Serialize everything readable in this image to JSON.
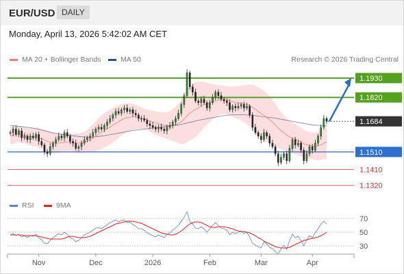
{
  "header": {
    "pair": "EUR/USD",
    "period": "DAILY"
  },
  "datetime": "Monday, April 13, 2026 5:42:02 AM CET",
  "legend": {
    "ma20": {
      "label": "MA 20 + Bollinger Bands",
      "color": "#f08080"
    },
    "ma50": {
      "label": "MA 50",
      "color": "#2c4f8a"
    },
    "credit": "Research © 2026 Trading Central",
    "rsi": {
      "label": "RSI",
      "color": "#5b7fd6"
    },
    "ma9": {
      "label": "9MA",
      "color": "#e02020"
    }
  },
  "chart_data": {
    "type": "candlestick",
    "x_ticks": [
      "Nov",
      "Dec",
      "2026",
      "Feb",
      "Mar",
      "Apr"
    ],
    "price_range": [
      1.126,
      1.2
    ],
    "levels": [
      {
        "label": "1.1930",
        "value": 1.193,
        "kind": "resistance",
        "color": "#5aa02c"
      },
      {
        "label": "1.1820",
        "value": 1.182,
        "kind": "resistance",
        "color": "#5aa02c"
      },
      {
        "label": "1.1684",
        "value": 1.1684,
        "kind": "last-price",
        "color": "#333333"
      },
      {
        "label": "1.1510",
        "value": 1.151,
        "kind": "support",
        "color": "#4a7fd4"
      },
      {
        "label": "1.1410",
        "value": 1.141,
        "kind": "support",
        "color": "#e06060"
      },
      {
        "label": "1.1320",
        "value": 1.132,
        "kind": "support",
        "color": "#e06060"
      }
    ],
    "close": [
      1.162,
      1.164,
      1.161,
      1.163,
      1.159,
      1.16,
      1.158,
      1.16,
      1.159,
      1.161,
      1.157,
      1.155,
      1.151,
      1.15,
      1.154,
      1.156,
      1.158,
      1.16,
      1.159,
      1.162,
      1.16,
      1.157,
      1.156,
      1.153,
      1.154,
      1.156,
      1.158,
      1.159,
      1.16,
      1.162,
      1.164,
      1.165,
      1.164,
      1.166,
      1.168,
      1.17,
      1.172,
      1.174,
      1.173,
      1.175,
      1.176,
      1.174,
      1.175,
      1.173,
      1.172,
      1.17,
      1.17,
      1.169,
      1.167,
      1.166,
      1.165,
      1.164,
      1.165,
      1.164,
      1.163,
      1.165,
      1.166,
      1.168,
      1.17,
      1.173,
      1.178,
      1.183,
      1.196,
      1.188,
      1.185,
      1.18,
      1.179,
      1.181,
      1.179,
      1.176,
      1.179,
      1.182,
      1.185,
      1.183,
      1.181,
      1.18,
      1.179,
      1.175,
      1.177,
      1.176,
      1.177,
      1.178,
      1.176,
      1.177,
      1.172,
      1.165,
      1.162,
      1.16,
      1.158,
      1.162,
      1.16,
      1.156,
      1.154,
      1.15,
      1.145,
      1.148,
      1.15,
      1.146,
      1.153,
      1.158,
      1.155,
      1.156,
      1.152,
      1.146,
      1.15,
      1.154,
      1.152,
      1.156,
      1.16,
      1.165,
      1.17,
      1.1684
    ],
    "ma20": [
      1.16,
      1.1605,
      1.161,
      1.161,
      1.1605,
      1.1605,
      1.16,
      1.1598,
      1.1595,
      1.1595,
      1.159,
      1.1585,
      1.1578,
      1.157,
      1.1565,
      1.1562,
      1.156,
      1.156,
      1.1562,
      1.1565,
      1.1566,
      1.1565,
      1.1562,
      1.156,
      1.156,
      1.1562,
      1.1566,
      1.1572,
      1.158,
      1.159,
      1.16,
      1.1612,
      1.1622,
      1.1632,
      1.1642,
      1.1652,
      1.1662,
      1.1672,
      1.1682,
      1.1692,
      1.17,
      1.1705,
      1.1708,
      1.171,
      1.1708,
      1.1705,
      1.1702,
      1.1698,
      1.1692,
      1.1686,
      1.168,
      1.1675,
      1.167,
      1.1666,
      1.1662,
      1.166,
      1.166,
      1.1662,
      1.1666,
      1.1672,
      1.1682,
      1.1696,
      1.1716,
      1.173,
      1.1742,
      1.1752,
      1.176,
      1.177,
      1.1778,
      1.1784,
      1.179,
      1.1796,
      1.18,
      1.1804,
      1.1806,
      1.1806,
      1.1804,
      1.18,
      1.1796,
      1.1792,
      1.179,
      1.1788,
      1.1784,
      1.178,
      1.1774,
      1.1764,
      1.1752,
      1.174,
      1.1728,
      1.1718,
      1.1706,
      1.1694,
      1.168,
      1.1664,
      1.1646,
      1.1632,
      1.162,
      1.1606,
      1.1596,
      1.159,
      1.1582,
      1.1575,
      1.1566,
      1.1556,
      1.155,
      1.1548,
      1.1544,
      1.1542,
      1.1544,
      1.155,
      1.1558,
      1.1566
    ],
    "ma50": [
      1.166,
      1.166,
      1.1658,
      1.1656,
      1.1654,
      1.1652,
      1.165,
      1.1648,
      1.1645,
      1.1642,
      1.1638,
      1.1634,
      1.163,
      1.1626,
      1.1622,
      1.1618,
      1.1615,
      1.1612,
      1.161,
      1.1608,
      1.1606,
      1.1604,
      1.1602,
      1.16,
      1.1598,
      1.1596,
      1.1595,
      1.1594,
      1.1594,
      1.1595,
      1.1596,
      1.1598,
      1.16,
      1.1602,
      1.1605,
      1.1608,
      1.1611,
      1.1614,
      1.1617,
      1.162,
      1.1623,
      1.1626,
      1.1629,
      1.1632,
      1.1634,
      1.1636,
      1.1638,
      1.164,
      1.1642,
      1.1644,
      1.1646,
      1.1648,
      1.165,
      1.1652,
      1.1654,
      1.1656,
      1.1658,
      1.166,
      1.1662,
      1.1664,
      1.1667,
      1.167,
      1.1674,
      1.1678,
      1.1682,
      1.1686,
      1.169,
      1.1693,
      1.1696,
      1.1699,
      1.1702,
      1.1705,
      1.1708,
      1.1711,
      1.1714,
      1.1716,
      1.1718,
      1.172,
      1.1721,
      1.1722,
      1.1722,
      1.1722,
      1.1721,
      1.172,
      1.1719,
      1.1718,
      1.1716,
      1.1714,
      1.1712,
      1.171,
      1.1708,
      1.1706,
      1.1704,
      1.1702,
      1.1699,
      1.1696,
      1.1693,
      1.169,
      1.1687,
      1.1684,
      1.1681,
      1.1678,
      1.1675,
      1.1672,
      1.1669,
      1.1666,
      1.1664,
      1.1662,
      1.1661,
      1.166,
      1.166,
      1.166
    ],
    "bb_width": [
      0.005,
      0.005,
      0.0048,
      0.0046,
      0.0046,
      0.0046,
      0.0048,
      0.005,
      0.0052,
      0.0054,
      0.0056,
      0.0058,
      0.006,
      0.0062,
      0.0062,
      0.006,
      0.0058,
      0.0056,
      0.0054,
      0.0052,
      0.005,
      0.005,
      0.0052,
      0.0054,
      0.0056,
      0.0058,
      0.006,
      0.0064,
      0.007,
      0.0078,
      0.0086,
      0.0092,
      0.0096,
      0.0098,
      0.01,
      0.01,
      0.0098,
      0.0096,
      0.0094,
      0.009,
      0.0086,
      0.0082,
      0.0078,
      0.0074,
      0.007,
      0.0066,
      0.0062,
      0.006,
      0.006,
      0.0062,
      0.0064,
      0.0066,
      0.0068,
      0.007,
      0.0072,
      0.0076,
      0.0082,
      0.009,
      0.01,
      0.0112,
      0.0126,
      0.014,
      0.015,
      0.0156,
      0.0158,
      0.0156,
      0.015,
      0.014,
      0.013,
      0.012,
      0.011,
      0.01,
      0.0092,
      0.0086,
      0.0082,
      0.008,
      0.008,
      0.0082,
      0.0086,
      0.009,
      0.0094,
      0.0098,
      0.0104,
      0.0112,
      0.012,
      0.0128,
      0.0134,
      0.0138,
      0.014,
      0.014,
      0.0138,
      0.0134,
      0.0128,
      0.012,
      0.0112,
      0.0106,
      0.01,
      0.0096,
      0.0092,
      0.0088,
      0.0086,
      0.0084,
      0.0082,
      0.008,
      0.0078,
      0.0076,
      0.0076,
      0.0078,
      0.0082,
      0.0086,
      0.009,
      0.0094
    ],
    "projection": {
      "from": 1.1684,
      "to": 1.193
    },
    "rsi": {
      "ticks": [
        "70",
        "50",
        "30"
      ],
      "range": [
        20,
        80
      ],
      "values": [
        46,
        48,
        45,
        47,
        43,
        45,
        42,
        45,
        44,
        47,
        42,
        39,
        34,
        33,
        38,
        42,
        45,
        48,
        46,
        50,
        47,
        42,
        40,
        36,
        38,
        42,
        46,
        48,
        50,
        53,
        56,
        57,
        55,
        58,
        61,
        64,
        66,
        68,
        65,
        67,
        68,
        64,
        65,
        61,
        59,
        55,
        55,
        53,
        49,
        47,
        45,
        43,
        46,
        44,
        42,
        47,
        49,
        53,
        56,
        60,
        66,
        72,
        80,
        66,
        62,
        56,
        55,
        58,
        55,
        50,
        55,
        60,
        64,
        60,
        56,
        55,
        53,
        46,
        50,
        48,
        50,
        52,
        48,
        50,
        43,
        34,
        31,
        29,
        27,
        36,
        33,
        28,
        26,
        22,
        18,
        26,
        31,
        25,
        38,
        47,
        42,
        44,
        38,
        30,
        38,
        45,
        42,
        49,
        55,
        62,
        66,
        62
      ],
      "ma9": [
        46,
        46,
        46,
        46,
        46,
        45,
        45,
        45,
        45,
        45,
        44,
        43,
        42,
        41,
        40,
        40,
        40,
        40,
        40,
        41,
        43,
        44,
        44,
        43,
        42,
        42,
        42,
        43,
        44,
        46,
        48,
        50,
        52,
        54,
        56,
        58,
        60,
        62,
        63,
        64,
        65,
        66,
        66,
        66,
        65,
        64,
        63,
        61,
        59,
        57,
        55,
        53,
        51,
        49,
        48,
        47,
        46,
        46,
        47,
        49,
        52,
        55,
        59,
        62,
        64,
        65,
        65,
        64,
        62,
        60,
        58,
        57,
        57,
        58,
        58,
        58,
        57,
        56,
        55,
        53,
        52,
        51,
        51,
        50,
        49,
        47,
        45,
        42,
        40,
        37,
        35,
        33,
        31,
        29,
        28,
        27,
        27,
        27,
        28,
        30,
        32,
        34,
        36,
        38,
        39,
        40,
        41,
        42,
        43,
        45,
        47,
        50
      ]
    }
  }
}
